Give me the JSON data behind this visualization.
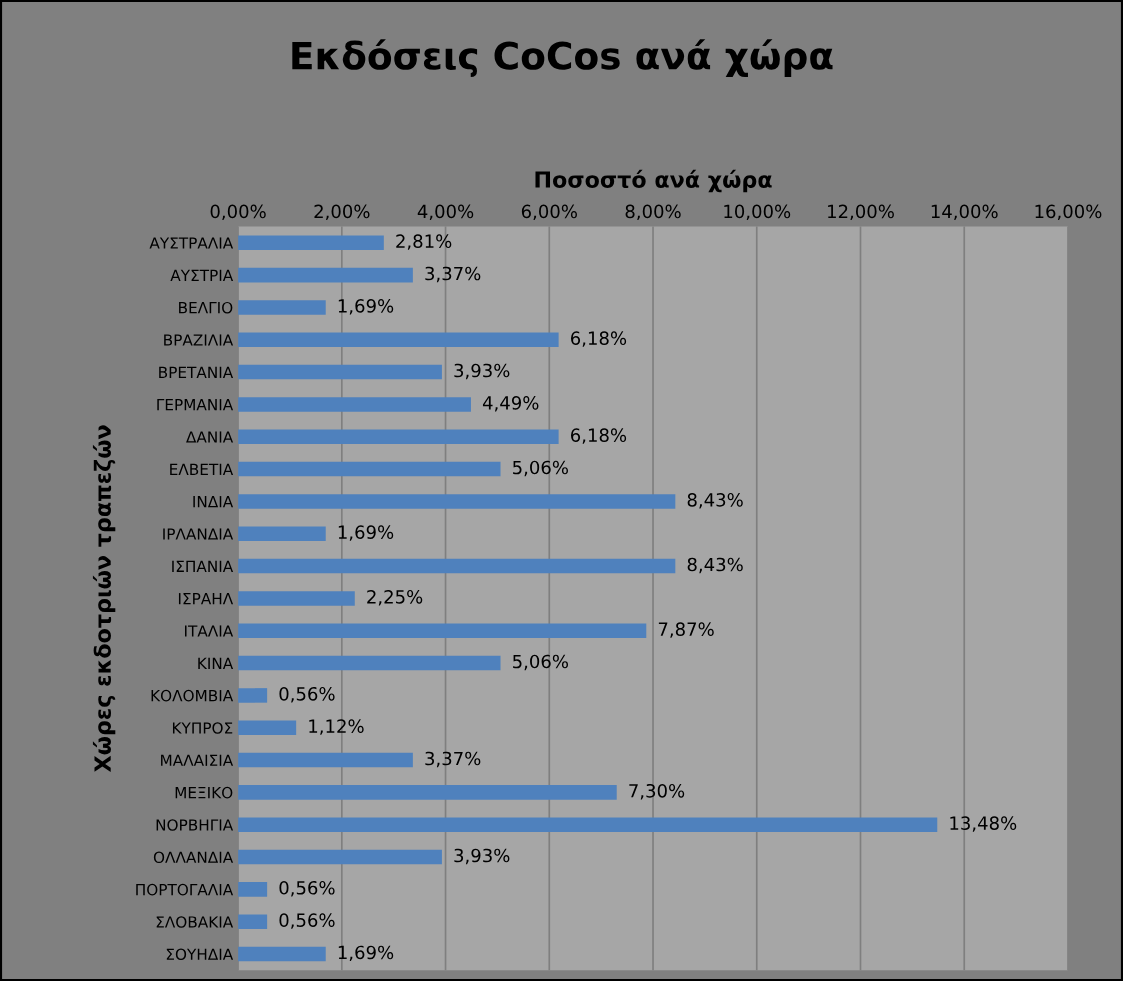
{
  "chart_data": {
    "type": "bar",
    "orientation": "horizontal",
    "title": "Εκδόσεις CoCos ανά χώρα",
    "xlabel": "Ποσοστό ανά χώρα",
    "ylabel": "Χώρες εκδοτριών τραπεζών",
    "categories": [
      "ΑΥΣΤΡΑΛΙΑ",
      "ΑΥΣΤΡΙΑ",
      "ΒΕΛΓΙΟ",
      "ΒΡΑΖΙΛΙΑ",
      "ΒΡΕΤΑΝΙΑ",
      "ΓΕΡΜΑΝΙΑ",
      "ΔΑΝΙΑ",
      "ΕΛΒΕΤΙΑ",
      "ΙΝΔΙΑ",
      "ΙΡΛΑΝΔΙΑ",
      "ΙΣΠΑΝΙΑ",
      "ΙΣΡΑΗΛ",
      "ΙΤΑΛΙΑ",
      "ΚΙΝΑ",
      "ΚΟΛΟΜΒΙΑ",
      "ΚΥΠΡΟΣ",
      "ΜΑΛΑΙΣΙΑ",
      "ΜΕΞΙΚΟ",
      "ΝΟΡΒΗΓΙΑ",
      "ΟΛΛΑΝΔΙΑ",
      "ΠΟΡΤΟΓΑΛΙΑ",
      "ΣΛΟΒΑΚΙΑ",
      "ΣΟΥΗΔΙΑ"
    ],
    "values": [
      2.81,
      3.37,
      1.69,
      6.18,
      3.93,
      4.49,
      6.18,
      5.06,
      8.43,
      1.69,
      8.43,
      2.25,
      7.87,
      5.06,
      0.56,
      1.12,
      3.37,
      7.3,
      13.48,
      3.93,
      0.56,
      0.56,
      1.69
    ],
    "value_labels": [
      "2,81%",
      "3,37%",
      "1,69%",
      "6,18%",
      "3,93%",
      "4,49%",
      "6,18%",
      "5,06%",
      "8,43%",
      "1,69%",
      "8,43%",
      "2,25%",
      "7,87%",
      "5,06%",
      "0,56%",
      "1,12%",
      "3,37%",
      "7,30%",
      "13,48%",
      "3,93%",
      "0,56%",
      "0,56%",
      "1,69%"
    ],
    "color": "#4f81bd",
    "xlim": [
      0,
      16
    ],
    "xticks": [
      {
        "value": 0,
        "label": "0,00%"
      },
      {
        "value": 2,
        "label": "2,00%"
      },
      {
        "value": 4,
        "label": "4,00%"
      },
      {
        "value": 6,
        "label": "6,00%"
      },
      {
        "value": 8,
        "label": "8,00%"
      },
      {
        "value": 10,
        "label": "10,00%"
      },
      {
        "value": 12,
        "label": "12,00%"
      },
      {
        "value": 14,
        "label": "14,00%"
      },
      {
        "value": 16,
        "label": "16,00%"
      }
    ],
    "grid": "x",
    "legend": false
  }
}
